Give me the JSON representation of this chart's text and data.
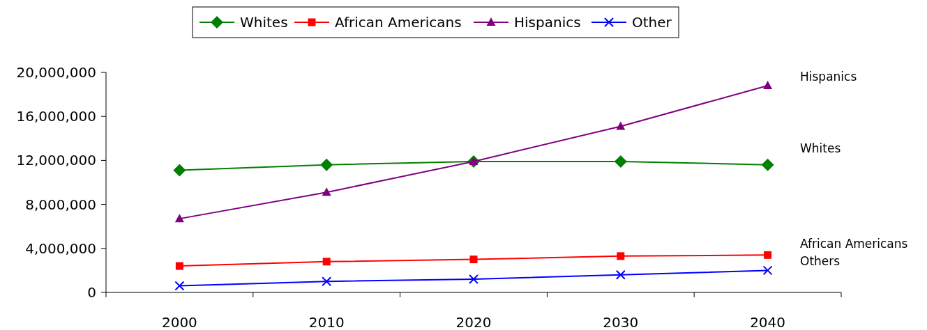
{
  "chart_data": {
    "type": "line",
    "categories": [
      "2000",
      "2010",
      "2020",
      "2030",
      "2040"
    ],
    "series": [
      {
        "name": "Whites",
        "color": "#008000",
        "marker": "diamond",
        "values": [
          11100000,
          11600000,
          11900000,
          11900000,
          11600000
        ]
      },
      {
        "name": "African Americans",
        "color": "#ff0000",
        "marker": "square",
        "values": [
          2400000,
          2800000,
          3000000,
          3300000,
          3400000
        ]
      },
      {
        "name": "Hispanics",
        "color": "#800080",
        "marker": "triangle",
        "values": [
          6700000,
          9100000,
          11900000,
          15100000,
          18800000
        ]
      },
      {
        "name": "Other",
        "color": "#0000ff",
        "marker": "cross",
        "values": [
          600000,
          1000000,
          1200000,
          1600000,
          2000000
        ]
      }
    ],
    "ylim": [
      0,
      20000000
    ],
    "yticks": [
      {
        "value": 0,
        "label": "0"
      },
      {
        "value": 4000000,
        "label": "4,000,000"
      },
      {
        "value": 8000000,
        "label": "8,000,000"
      },
      {
        "value": 12000000,
        "label": "12,000,000"
      },
      {
        "value": 16000000,
        "label": "16,000,000"
      },
      {
        "value": 20000000,
        "label": "20,000,000"
      }
    ],
    "legend": "top",
    "grid": false,
    "annotations": [
      "Hispanics",
      "Whites",
      "African Americans",
      "Others"
    ]
  }
}
